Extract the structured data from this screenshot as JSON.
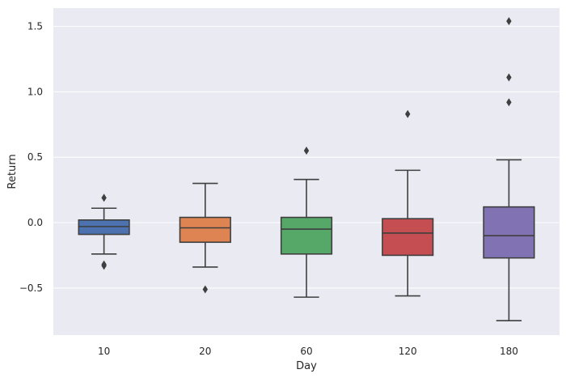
{
  "chart_data": {
    "type": "box",
    "xlabel": "Day",
    "ylabel": "Return",
    "ylim": [
      -0.86,
      1.64
    ],
    "yticks": [
      -0.5,
      0.0,
      0.5,
      1.0,
      1.5
    ],
    "ytick_labels": [
      "−0.5",
      "0.0",
      "0.5",
      "1.0",
      "1.5"
    ],
    "grid": true,
    "categories": [
      "10",
      "20",
      "60",
      "120",
      "180"
    ],
    "boxes": [
      {
        "category": "10",
        "color": "#4c72b0",
        "whisker_low": -0.24,
        "q1": -0.09,
        "median": -0.03,
        "q3": 0.02,
        "whisker_high": 0.11,
        "outliers": [
          -0.32,
          -0.33,
          0.19
        ]
      },
      {
        "category": "20",
        "color": "#dd8452",
        "whisker_low": -0.34,
        "q1": -0.15,
        "median": -0.04,
        "q3": 0.04,
        "whisker_high": 0.3,
        "outliers": [
          -0.51
        ]
      },
      {
        "category": "60",
        "color": "#55a868",
        "whisker_low": -0.57,
        "q1": -0.24,
        "median": -0.05,
        "q3": 0.04,
        "whisker_high": 0.33,
        "outliers": [
          0.55
        ]
      },
      {
        "category": "120",
        "color": "#c44e52",
        "whisker_low": -0.56,
        "q1": -0.25,
        "median": -0.08,
        "q3": 0.03,
        "whisker_high": 0.4,
        "outliers": [
          0.83
        ]
      },
      {
        "category": "180",
        "color": "#8172b3",
        "whisker_low": -0.75,
        "q1": -0.27,
        "median": -0.1,
        "q3": 0.12,
        "whisker_high": 0.48,
        "outliers": [
          0.92,
          1.11,
          1.54
        ]
      }
    ],
    "colors": {
      "background": "#eaeaf2",
      "grid": "#ffffff",
      "line": "#3f3f3f"
    }
  }
}
